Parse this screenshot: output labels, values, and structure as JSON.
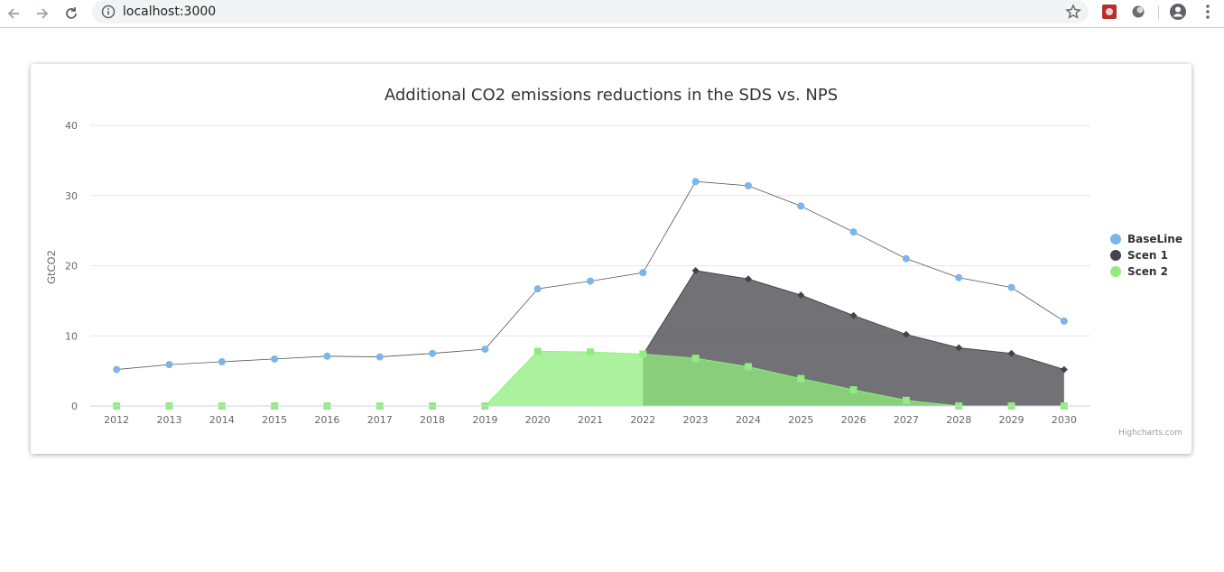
{
  "browser": {
    "url": "localhost:3000",
    "icons": [
      "back-arrow-icon",
      "forward-arrow-icon",
      "reload-icon",
      "info-icon",
      "star-icon",
      "extension-icon",
      "extension-icon",
      "account-icon",
      "menu-icon"
    ]
  },
  "credits": "Highcharts.com",
  "chart_data": {
    "type": "area",
    "title": "Additional CO2 emissions reductions in the SDS vs. NPS",
    "xlabel": "",
    "ylabel": "GtCO2",
    "ylim": [
      0,
      40
    ],
    "yticks": [
      "0",
      "10",
      "20",
      "30",
      "40"
    ],
    "categories": [
      "2012",
      "2013",
      "2014",
      "2015",
      "2016",
      "2017",
      "2018",
      "2019",
      "2020",
      "2021",
      "2022",
      "2023",
      "2024",
      "2025",
      "2026",
      "2027",
      "2028",
      "2029",
      "2030"
    ],
    "grid": true,
    "legend_position": "right",
    "series": [
      {
        "name": "BaseLine",
        "type": "line",
        "color": "#7cb5ec",
        "values": [
          5.2,
          5.9,
          6.3,
          6.7,
          7.1,
          7.0,
          7.5,
          8.1,
          16.7,
          17.8,
          19.0,
          32.0,
          31.4,
          28.5,
          24.8,
          21.0,
          18.3,
          16.9,
          12.1
        ]
      },
      {
        "name": "Scen 1",
        "type": "area",
        "color": "#434348",
        "values": [
          null,
          null,
          null,
          null,
          null,
          null,
          null,
          null,
          null,
          null,
          7.3,
          19.3,
          18.1,
          15.8,
          12.9,
          10.2,
          8.3,
          7.5,
          5.2
        ]
      },
      {
        "name": "Scen 2",
        "type": "area",
        "color": "#90ed7d",
        "values": [
          0,
          0,
          0,
          0,
          0,
          0,
          0,
          0,
          7.8,
          7.7,
          7.4,
          6.8,
          5.6,
          3.9,
          2.3,
          0.8,
          0,
          0,
          0
        ]
      }
    ]
  }
}
